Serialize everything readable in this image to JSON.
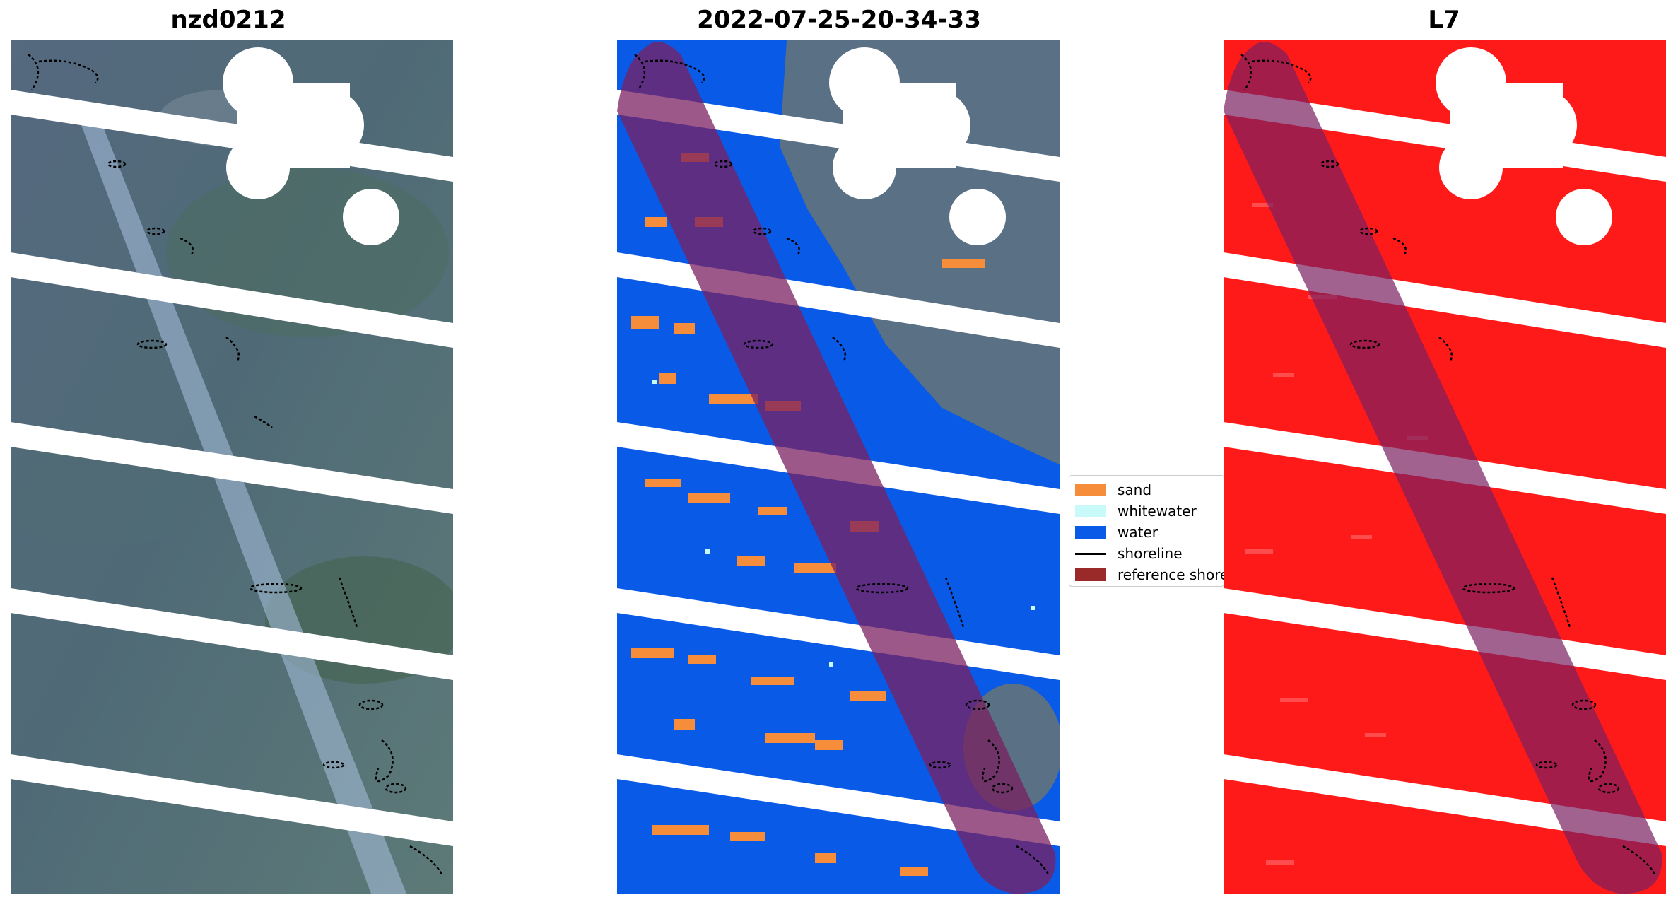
{
  "panels": [
    {
      "title": "nzd0212"
    },
    {
      "title": "2022-07-25-20-34-33"
    },
    {
      "title": "L7"
    }
  ],
  "legend": {
    "items": [
      {
        "label": "sand",
        "color": "#f58d3a"
      },
      {
        "label": "whitewater",
        "color": "#c8fafa"
      },
      {
        "label": "water",
        "color": "#0a5ae8"
      },
      {
        "label": "shoreline",
        "color": "#000000"
      },
      {
        "label": "reference shoreline",
        "color": "#9a2a2a"
      }
    ]
  },
  "colors": {
    "scene_background": "#5a7088",
    "nodata": "#ffffff",
    "classified_water": "#0a5ae8",
    "classified_land": "#5a7085",
    "index_red": "#ff1a1a",
    "reference_buffer": "#7a2060"
  }
}
